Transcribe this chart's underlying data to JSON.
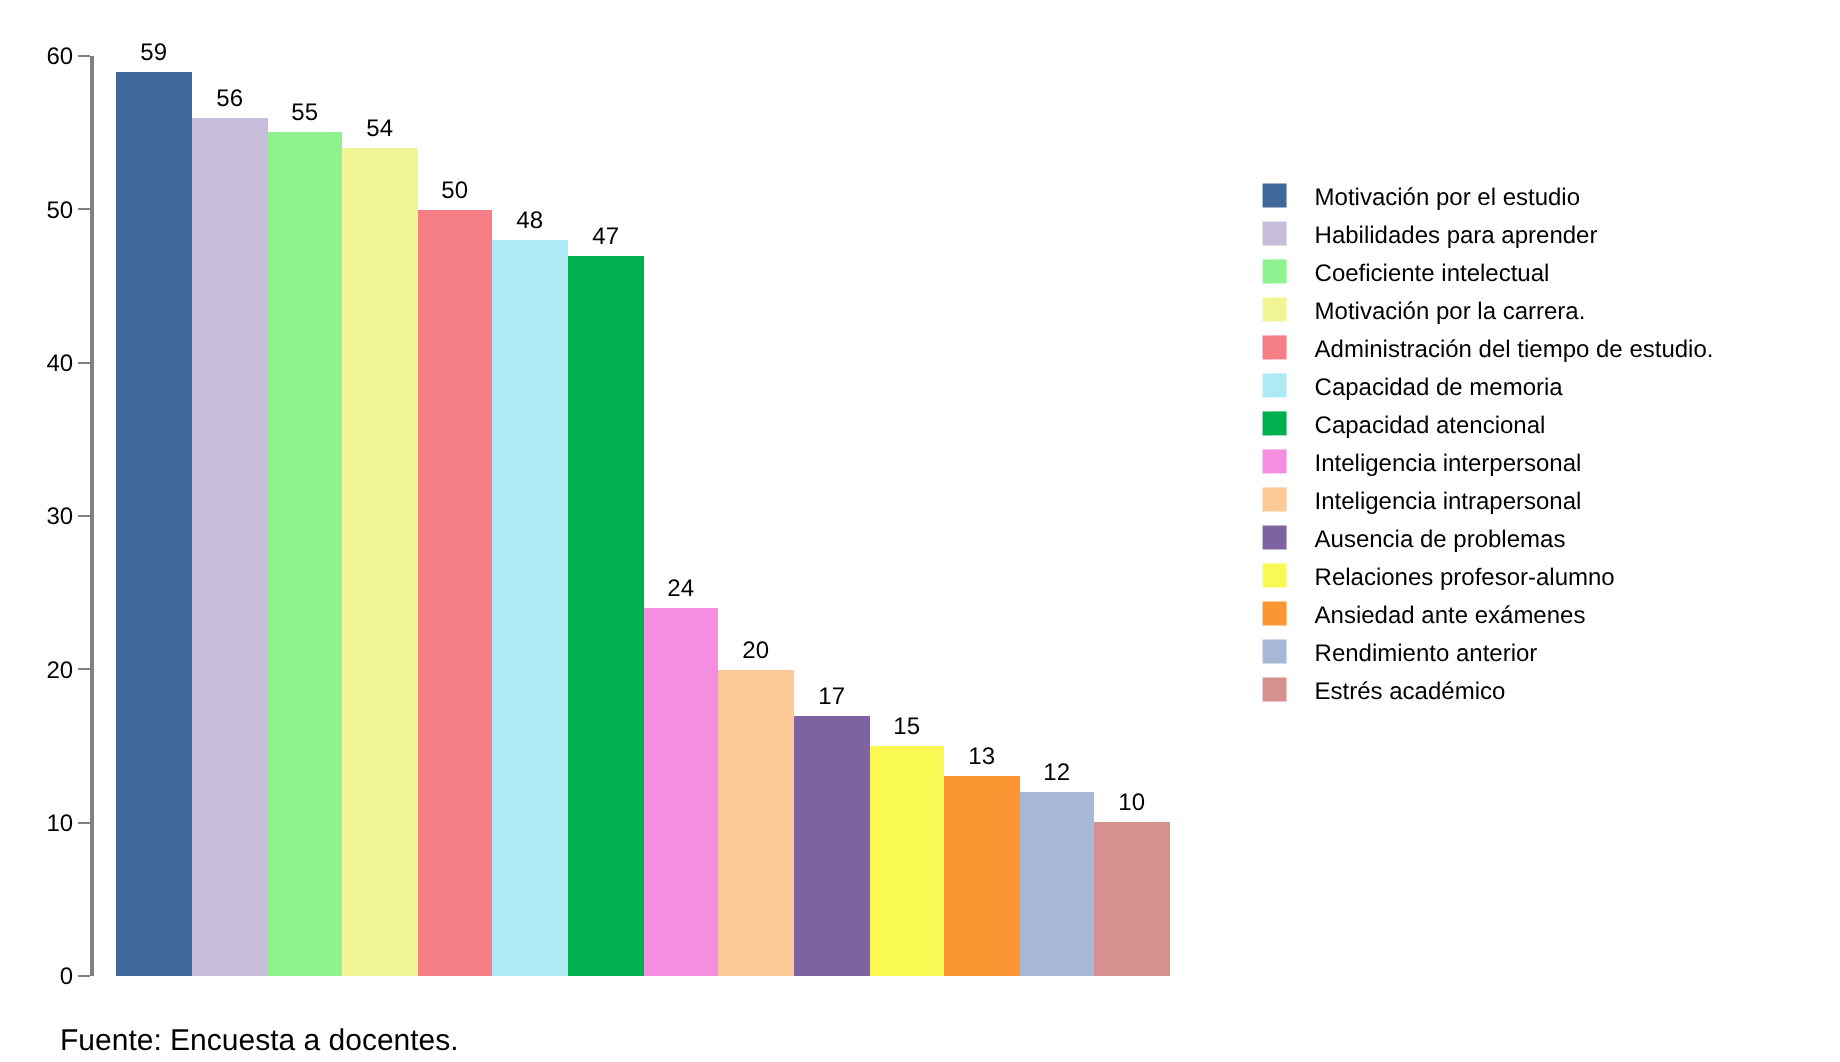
{
  "chart_data": {
    "type": "bar",
    "stacked": true,
    "categories": [
      null,
      null,
      null,
      null,
      null,
      null,
      null,
      null,
      null,
      null,
      null,
      null,
      null,
      null
    ],
    "series": [
      {
        "name": "Motivación por el estudio",
        "color": "#41689a",
        "values": [
          59,
          null,
          null,
          null,
          null,
          null,
          null,
          null,
          null,
          null,
          null,
          null,
          null,
          null
        ]
      },
      {
        "name": "Habilidades para aprender",
        "color": "#c8bedc",
        "values": [
          null,
          56,
          null,
          null,
          null,
          null,
          null,
          null,
          null,
          null,
          null,
          null,
          null,
          null
        ]
      },
      {
        "name": "Coeficiente intelectual",
        "color": "#8ef28e",
        "values": [
          null,
          null,
          55,
          null,
          null,
          null,
          null,
          null,
          null,
          null,
          null,
          null,
          null,
          null
        ]
      },
      {
        "name": "Motivación por la carrera.",
        "color": "#f2f596",
        "values": [
          null,
          null,
          null,
          54,
          null,
          null,
          null,
          null,
          null,
          null,
          null,
          null,
          null,
          null
        ]
      },
      {
        "name": "Administración del tiempo de estudio.",
        "color": "#f57d84",
        "values": [
          null,
          null,
          null,
          null,
          50,
          null,
          null,
          null,
          null,
          null,
          null,
          null,
          null,
          null
        ]
      },
      {
        "name": "Capacidad de memoria",
        "color": "#aeeaf6",
        "values": [
          null,
          null,
          null,
          null,
          null,
          48,
          null,
          null,
          null,
          null,
          null,
          null,
          null,
          null
        ]
      },
      {
        "name": "Capacidad atencional",
        "color": "#00b04f",
        "values": [
          null,
          null,
          null,
          null,
          null,
          null,
          47,
          null,
          null,
          null,
          null,
          null,
          null,
          null
        ]
      },
      {
        "name": "Inteligencia interpersonal",
        "color": "#f38ee0",
        "values": [
          null,
          null,
          null,
          null,
          null,
          null,
          null,
          24,
          null,
          null,
          null,
          null,
          null,
          null
        ]
      },
      {
        "name": "Inteligencia intrapersonal",
        "color": "#fbc896",
        "values": [
          null,
          null,
          null,
          null,
          null,
          null,
          null,
          null,
          20,
          null,
          null,
          null,
          null,
          null
        ]
      },
      {
        "name": "Ausencia de problemas",
        "color": "#7f62a0",
        "values": [
          null,
          null,
          null,
          null,
          null,
          null,
          null,
          null,
          null,
          17,
          null,
          null,
          null,
          null
        ]
      },
      {
        "name": "Relaciones profesor-alumno",
        "color": "#faf852",
        "values": [
          null,
          null,
          null,
          null,
          null,
          null,
          null,
          null,
          null,
          null,
          15,
          null,
          null,
          null
        ]
      },
      {
        "name": "Ansiedad ante exámenes",
        "color": "#fb9633",
        "values": [
          null,
          null,
          null,
          null,
          null,
          null,
          null,
          null,
          null,
          null,
          null,
          13,
          null,
          null
        ]
      },
      {
        "name": "Rendimiento anterior",
        "color": "#a7b8d6",
        "values": [
          null,
          null,
          null,
          null,
          null,
          null,
          null,
          null,
          null,
          null,
          null,
          null,
          12,
          null
        ]
      },
      {
        "name": "Estrés académico",
        "color": "#d6918f",
        "values": [
          null,
          null,
          null,
          null,
          null,
          null,
          null,
          null,
          null,
          null,
          null,
          null,
          null,
          10
        ]
      }
    ],
    "ylim": [
      0,
      60
    ],
    "yticks": [
      0,
      10,
      20,
      30,
      40,
      50,
      60
    ],
    "grid": false,
    "legend": "right",
    "data_labels": true,
    "annotations": [
      "Fuente: Encuesta a docentes."
    ]
  }
}
